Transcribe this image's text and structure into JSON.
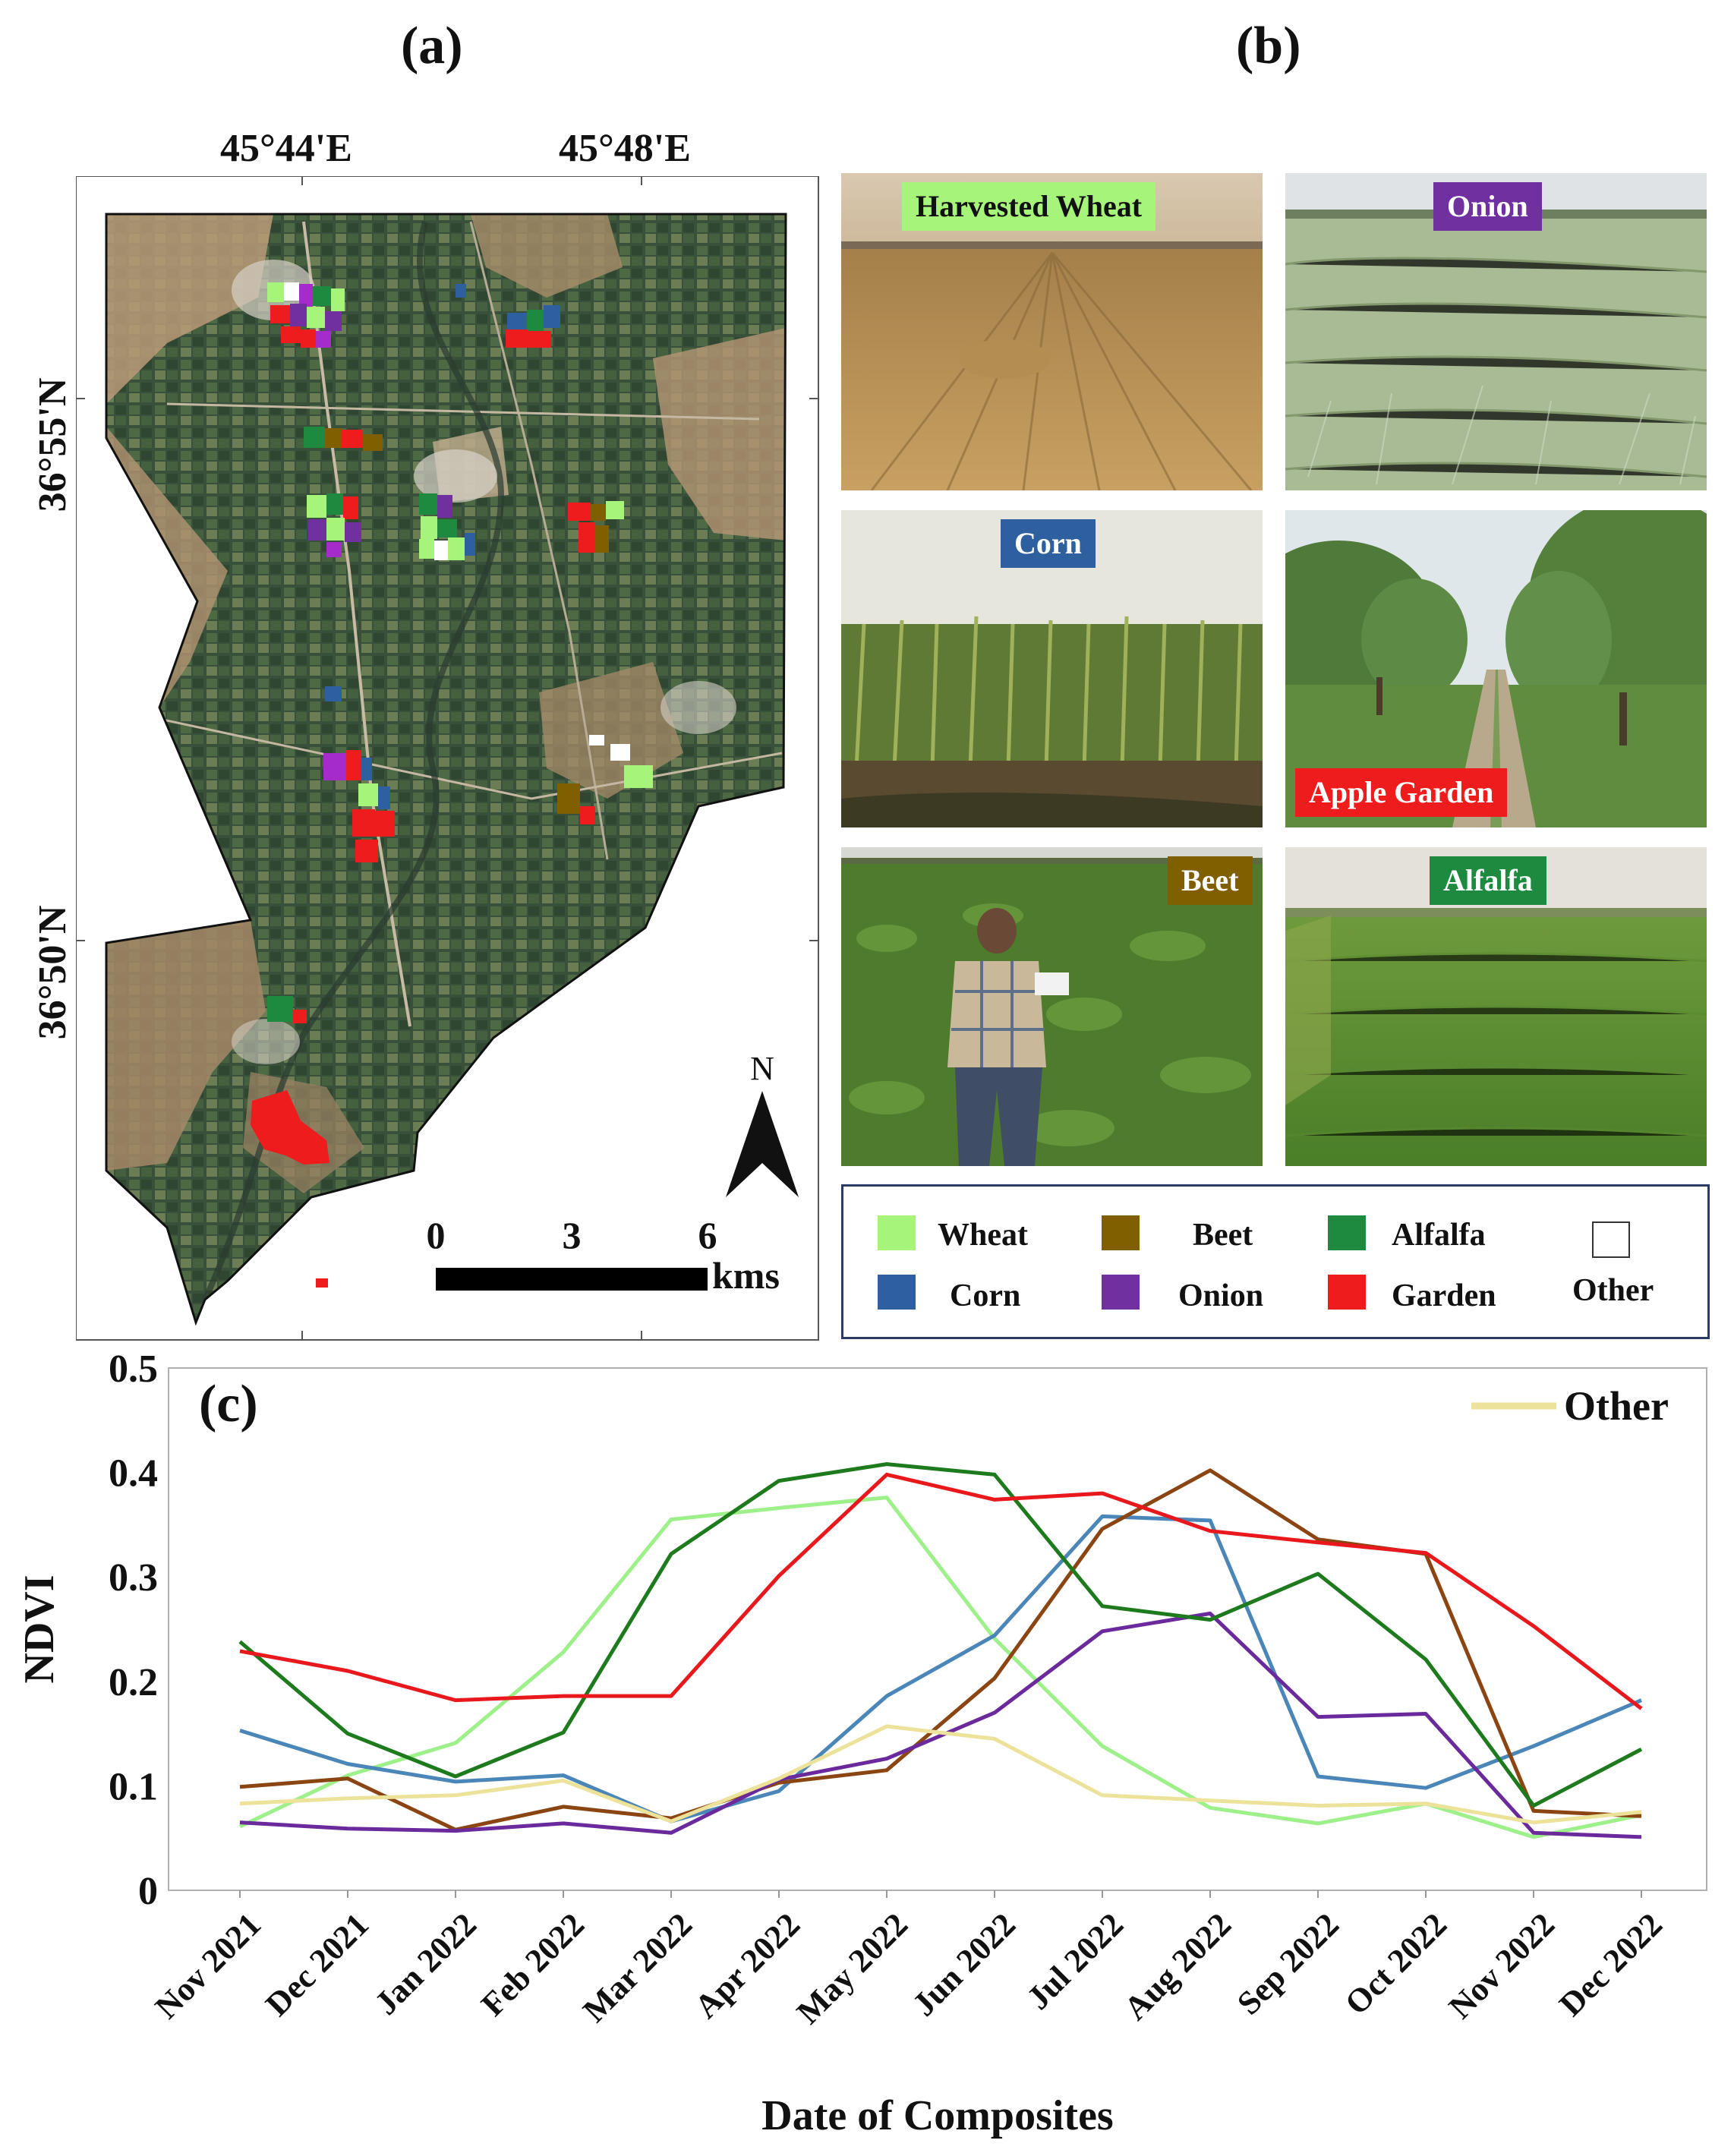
{
  "panels": {
    "a": "(a)",
    "b": "(b)",
    "c": "(c)"
  },
  "map": {
    "lon_labels": [
      "45°44'E",
      "45°48'E"
    ],
    "lat_labels": [
      "36°55'N",
      "36°50'N"
    ],
    "north_label": "N",
    "scale_ticks": [
      "0",
      "3",
      "6"
    ],
    "scale_unit": "kms"
  },
  "photos": [
    {
      "label": "Harvested Wheat",
      "color": "#a6f57a",
      "text_color": "#111111"
    },
    {
      "label": "Onion",
      "color": "#7030a0",
      "text_color": "#ffffff"
    },
    {
      "label": "Corn",
      "color": "#2e5f9e",
      "text_color": "#ffffff"
    },
    {
      "label": "Apple Garden",
      "color": "#ee1c1c",
      "text_color": "#ffffff"
    },
    {
      "label": "Beet",
      "color": "#7f5f00",
      "text_color": "#ffffff"
    },
    {
      "label": "Alfalfa",
      "color": "#1e8a3f",
      "text_color": "#ffffff"
    }
  ],
  "legend": [
    {
      "label": "Wheat",
      "color": "#a6f57a"
    },
    {
      "label": "Beet",
      "color": "#7f5f00"
    },
    {
      "label": "Alfalfa",
      "color": "#1e8a3f"
    },
    {
      "label": "Other",
      "color": "#ffffff"
    },
    {
      "label": "Corn",
      "color": "#2e5f9e"
    },
    {
      "label": "Onion",
      "color": "#7030a0"
    },
    {
      "label": "Garden",
      "color": "#ee1c1c"
    }
  ],
  "chart_data": {
    "type": "line",
    "ylabel": "NDVI",
    "xlabel": "Date of Composites",
    "ylim": [
      0,
      0.5
    ],
    "yticks": [
      "0",
      "0.1",
      "0.2",
      "0.3",
      "0.4",
      "0.5"
    ],
    "categories": [
      "Nov 2021",
      "Dec 2021",
      "Jan 2022",
      "Feb 2022",
      "Mar 2022",
      "Apr 2022",
      "May 2022",
      "Jun 2022",
      "Jul 2022",
      "Aug 2022",
      "Sep 2022",
      "Oct 2022",
      "Nov 2022",
      "Dec 2022"
    ],
    "legend_label": "Other",
    "series": [
      {
        "color": "#9ef08a",
        "values": [
          0.061,
          0.11,
          0.141,
          0.228,
          0.355,
          0.366,
          0.376,
          0.241,
          0.138,
          0.079,
          0.064,
          0.083,
          0.051,
          0.072
        ]
      },
      {
        "color": "#4a86b8",
        "values": [
          0.153,
          0.121,
          0.104,
          0.11,
          0.066,
          0.095,
          0.186,
          0.244,
          0.358,
          0.354,
          0.109,
          0.098,
          0.138,
          0.182
        ]
      },
      {
        "color": "#8b4513",
        "values": [
          0.099,
          0.107,
          0.058,
          0.08,
          0.069,
          0.103,
          0.115,
          0.203,
          0.346,
          0.402,
          0.336,
          0.322,
          0.076,
          0.071
        ]
      },
      {
        "color": "#6a2a9c",
        "values": [
          0.065,
          0.059,
          0.057,
          0.064,
          0.055,
          0.106,
          0.126,
          0.17,
          0.248,
          0.265,
          0.166,
          0.169,
          0.055,
          0.051
        ]
      },
      {
        "color": "#1d7a1d",
        "values": [
          0.238,
          0.15,
          0.109,
          0.151,
          0.322,
          0.392,
          0.408,
          0.398,
          0.272,
          0.259,
          0.303,
          0.221,
          0.081,
          0.135
        ]
      },
      {
        "color": "#e8181c",
        "values": [
          0.229,
          0.21,
          0.182,
          0.186,
          0.186,
          0.301,
          0.398,
          0.374,
          0.38,
          0.344,
          0.333,
          0.323,
          0.253,
          0.174
        ]
      },
      {
        "name": "Other",
        "color": "#ede29a",
        "values": [
          0.083,
          0.088,
          0.091,
          0.105,
          0.066,
          0.107,
          0.157,
          0.145,
          0.091,
          0.086,
          0.081,
          0.083,
          0.065,
          0.075
        ]
      }
    ]
  }
}
